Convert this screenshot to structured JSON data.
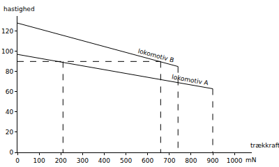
{
  "chart_data": {
    "type": "line",
    "y_label": "hastighed",
    "x_label": "trækkraft",
    "x_unit": "mN",
    "xlim": [
      0,
      1080
    ],
    "xticks": [
      0,
      100,
      200,
      300,
      400,
      500,
      600,
      700,
      800,
      900,
      1000
    ],
    "ylim": [
      0,
      135
    ],
    "yticks": [
      0,
      20,
      40,
      60,
      80,
      100,
      120
    ],
    "grid": false,
    "series": [
      {
        "name": "lokomotiv B",
        "color": "#000000",
        "line_style": "solid",
        "x": [
          0,
          740
        ],
        "values": [
          128,
          85
        ]
      },
      {
        "name": "lokomotiv A",
        "color": "#000000",
        "line_style": "solid",
        "x": [
          0,
          900
        ],
        "values": [
          97,
          63
        ]
      },
      {
        "color": "#000000",
        "line_style": "dashed",
        "x": [
          0,
          660
        ],
        "values": [
          90,
          90
        ]
      },
      {
        "color": "#000000",
        "line_style": "dashed",
        "x": [
          210,
          210
        ],
        "values": [
          90,
          0
        ]
      },
      {
        "color": "#000000",
        "line_style": "dashed",
        "x": [
          660,
          660
        ],
        "values": [
          90,
          0
        ]
      },
      {
        "color": "#000000",
        "line_style": "dashed",
        "x": [
          740,
          740
        ],
        "values": [
          85,
          0
        ]
      },
      {
        "color": "#000000",
        "line_style": "dashed",
        "x": [
          900,
          900
        ],
        "values": [
          63,
          0
        ]
      }
    ]
  }
}
